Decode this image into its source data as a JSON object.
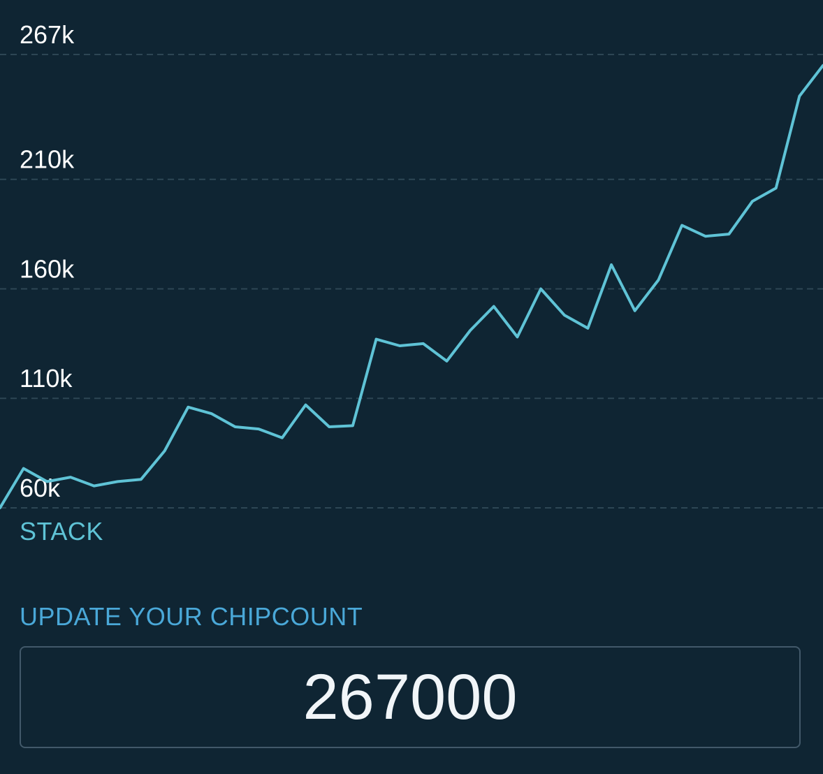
{
  "chart_data": {
    "type": "line",
    "title": "",
    "xlabel": "",
    "ylabel": "STACK",
    "y_ticks": [
      {
        "value": 267000,
        "label": "267k"
      },
      {
        "value": 210000,
        "label": "210k"
      },
      {
        "value": 160000,
        "label": "160k"
      },
      {
        "value": 110000,
        "label": "110k"
      },
      {
        "value": 60000,
        "label": "60k"
      }
    ],
    "ylim": [
      60000,
      267000
    ],
    "grid": true,
    "legend": "none",
    "series": [
      {
        "values": [
          60000,
          78000,
          72000,
          74000,
          70000,
          72000,
          73000,
          86000,
          106000,
          103000,
          97000,
          96000,
          92000,
          107000,
          97000,
          97500,
          137000,
          134000,
          135000,
          127000,
          141000,
          152000,
          138000,
          160000,
          148000,
          142000,
          171000,
          150000,
          164000,
          189000,
          184000,
          185000,
          200000,
          206000,
          248000,
          262000
        ]
      }
    ],
    "colors": {
      "line": "#5fc3d6",
      "grid": "#2d4654",
      "background": "#0f2533"
    }
  },
  "chipcount": {
    "title": "UPDATE YOUR CHIPCOUNT",
    "value": "267000"
  }
}
